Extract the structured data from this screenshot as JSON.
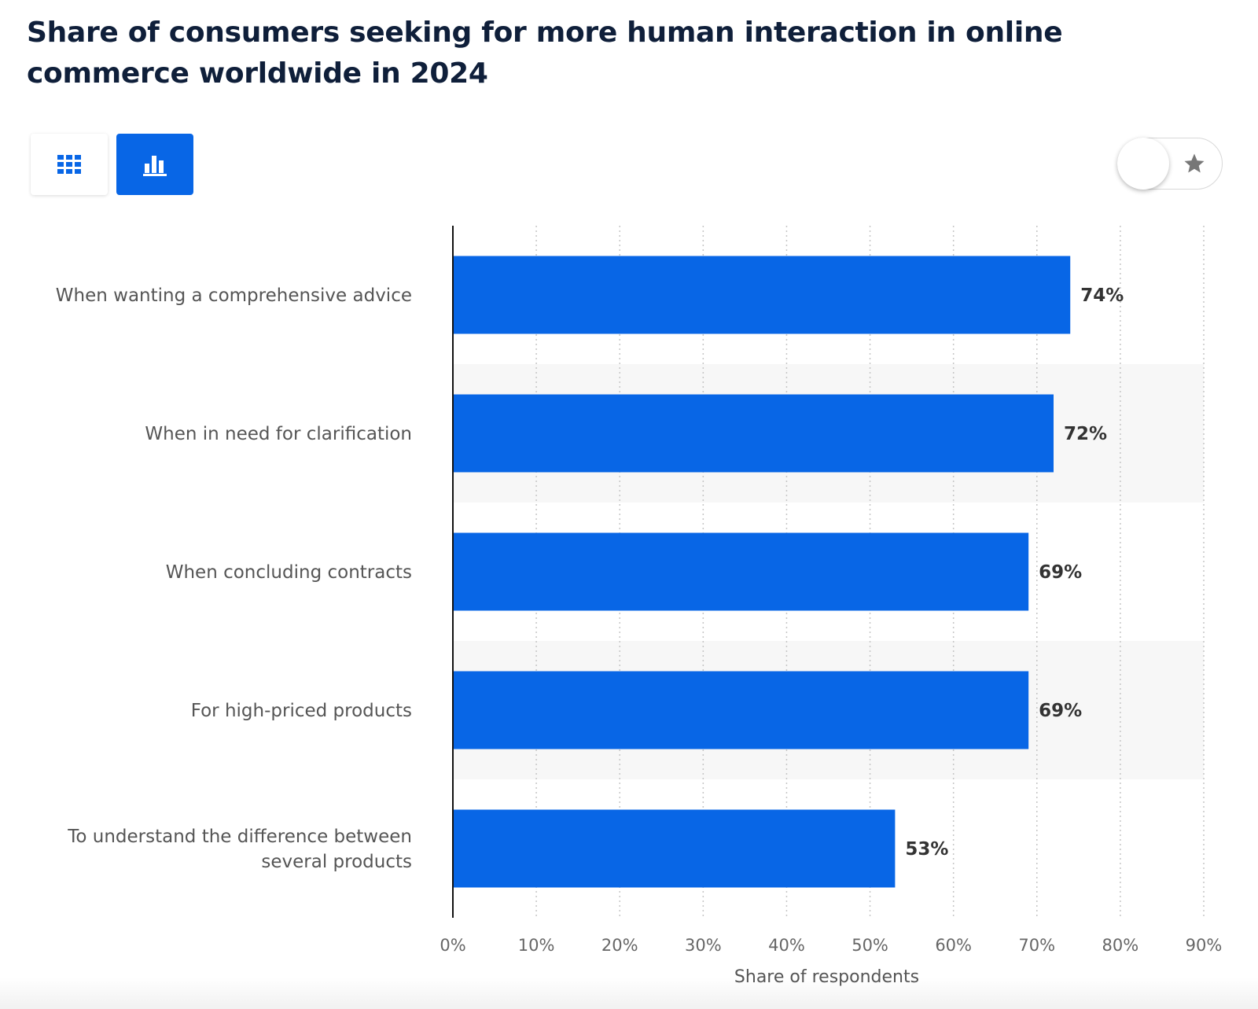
{
  "title": "Share of consumers seeking for more human interaction in online commerce worldwide in 2024",
  "view_buttons": {
    "table_icon": "grid-icon",
    "chart_icon": "bar-chart-icon"
  },
  "toggle": {
    "icon": "star-icon"
  },
  "colors": {
    "bar": "#0866e6",
    "title": "#0f1f3a",
    "label": "#555555",
    "alt_band": "#f7f7f7"
  },
  "chart_data": {
    "type": "bar",
    "orientation": "horizontal",
    "categories": [
      "When wanting a comprehensive advice",
      "When in need for clarification",
      "When concluding contracts",
      "For high-priced products",
      "To understand the difference between several products"
    ],
    "values": [
      74,
      72,
      69,
      69,
      53
    ],
    "data_labels": [
      "74%",
      "72%",
      "69%",
      "69%",
      "53%"
    ],
    "xlim": [
      0,
      90
    ],
    "x_ticks": [
      0,
      10,
      20,
      30,
      40,
      50,
      60,
      70,
      80,
      90
    ],
    "x_tick_labels": [
      "0%",
      "10%",
      "20%",
      "30%",
      "40%",
      "50%",
      "60%",
      "70%",
      "80%",
      "90%"
    ],
    "xlabel": "Share of respondents",
    "ylabel": "",
    "grid": true
  }
}
